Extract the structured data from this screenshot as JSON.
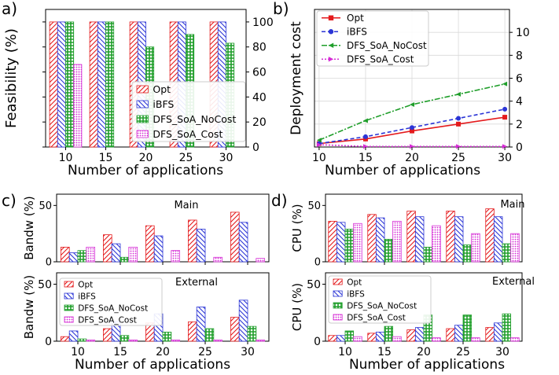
{
  "colors": {
    "opt": "#e41a1c",
    "ibfs": "#2b35d6",
    "nocost": "#1f9e2a",
    "cost": "#d52bd5"
  },
  "legend_labels": [
    "Opt",
    "iBFS",
    "DFS_SoA_NoCost",
    "DFS_SoA_Cost"
  ],
  "chart_data": [
    {
      "panel": "a)",
      "type": "bar",
      "categories": [
        "10",
        "15",
        "20",
        "25",
        "30"
      ],
      "ylabel": "Feasibility (%)",
      "xlabel": "Number of applications",
      "ylim": [
        0,
        110
      ],
      "yticks": [
        0,
        20,
        40,
        60,
        80,
        100
      ],
      "y_axis_side": "right",
      "legend": "bottom-right",
      "series": [
        {
          "name": "Opt",
          "values": [
            100,
            100,
            100,
            100,
            100
          ]
        },
        {
          "name": "iBFS",
          "values": [
            100,
            100,
            100,
            100,
            100
          ]
        },
        {
          "name": "DFS_SoA_NoCost",
          "values": [
            100,
            100,
            80,
            90,
            83
          ]
        },
        {
          "name": "DFS_SoA_Cost",
          "values": [
            66,
            0,
            0,
            0,
            0
          ]
        }
      ]
    },
    {
      "panel": "b)",
      "type": "line",
      "x": [
        10,
        15,
        20,
        25,
        30
      ],
      "ylabel": "Deployment cost",
      "xlabel": "Number of applications",
      "ylim": [
        0,
        12
      ],
      "yticks": [
        0,
        2,
        4,
        6,
        8,
        10
      ],
      "xticks": [
        10,
        15,
        20,
        25,
        30
      ],
      "y_axis_side": "right",
      "grid": true,
      "legend": "top-left",
      "series": [
        {
          "name": "Opt",
          "values": [
            0.3,
            0.7,
            1.4,
            2.0,
            2.6
          ]
        },
        {
          "name": "iBFS",
          "values": [
            0.3,
            0.9,
            1.7,
            2.5,
            3.3
          ]
        },
        {
          "name": "DFS_SoA_NoCost",
          "values": [
            0.6,
            2.3,
            3.7,
            4.6,
            5.5
          ]
        },
        {
          "name": "DFS_SoA_Cost",
          "values": [
            0.2,
            0.05,
            0.05,
            0.05,
            0.05
          ]
        }
      ]
    },
    {
      "panel": "c)",
      "type": "bar",
      "subtitle": "Main",
      "categories": [
        "10",
        "15",
        "20",
        "25",
        "30"
      ],
      "ylabel": "Bandw (%)",
      "ylim": [
        0,
        60
      ],
      "yticks": [
        0,
        50
      ],
      "series": [
        {
          "name": "Opt",
          "values": [
            13,
            24,
            32,
            37,
            44
          ]
        },
        {
          "name": "iBFS",
          "values": [
            8,
            16,
            23,
            29,
            35
          ]
        },
        {
          "name": "DFS_SoA_NoCost",
          "values": [
            10,
            4,
            0,
            0,
            0
          ]
        },
        {
          "name": "DFS_SoA_Cost",
          "values": [
            13,
            13,
            10,
            4,
            3
          ]
        }
      ]
    },
    {
      "panel": "c)",
      "type": "bar",
      "subtitle": "External",
      "categories": [
        "10",
        "15",
        "20",
        "25",
        "30"
      ],
      "ylabel": "Bandw (%)",
      "xlabel": "Number of applications",
      "ylim": [
        0,
        60
      ],
      "yticks": [
        0,
        50
      ],
      "legend": "top-left",
      "series": [
        {
          "name": "Opt",
          "values": [
            4,
            11,
            16,
            17,
            21
          ]
        },
        {
          "name": "iBFS",
          "values": [
            9,
            17,
            24,
            30,
            36
          ]
        },
        {
          "name": "DFS_SoA_NoCost",
          "values": [
            2,
            5,
            8,
            11,
            13
          ]
        },
        {
          "name": "DFS_SoA_Cost",
          "values": [
            1,
            1,
            1,
            1,
            1
          ]
        }
      ]
    },
    {
      "panel": "d)",
      "type": "bar",
      "subtitle": "Main",
      "categories": [
        "10",
        "15",
        "20",
        "25",
        "30"
      ],
      "ylabel": "CPU (%)",
      "ylim": [
        0,
        60
      ],
      "yticks": [
        0,
        50
      ],
      "series": [
        {
          "name": "Opt",
          "values": [
            36,
            42,
            45,
            45,
            47
          ]
        },
        {
          "name": "iBFS",
          "values": [
            35,
            39,
            40,
            40,
            40
          ]
        },
        {
          "name": "DFS_SoA_NoCost",
          "values": [
            29,
            20,
            13,
            15,
            16
          ]
        },
        {
          "name": "DFS_SoA_Cost",
          "values": [
            34,
            36,
            32,
            25,
            25
          ]
        }
      ]
    },
    {
      "panel": "d)",
      "type": "bar",
      "subtitle": "External",
      "categories": [
        "10",
        "15",
        "20",
        "25",
        "30"
      ],
      "ylabel": "CPU (%)",
      "xlabel": "Number of applications",
      "ylim": [
        0,
        60
      ],
      "yticks": [
        0,
        50
      ],
      "legend": "top-left",
      "series": [
        {
          "name": "Opt",
          "values": [
            5,
            7,
            10,
            11,
            12
          ]
        },
        {
          "name": "iBFS",
          "values": [
            5,
            8,
            12,
            14,
            16
          ]
        },
        {
          "name": "DFS_SoA_NoCost",
          "values": [
            9,
            13,
            23,
            23,
            24
          ]
        },
        {
          "name": "DFS_SoA_Cost",
          "values": [
            4,
            4,
            3,
            3,
            3
          ]
        }
      ]
    }
  ]
}
